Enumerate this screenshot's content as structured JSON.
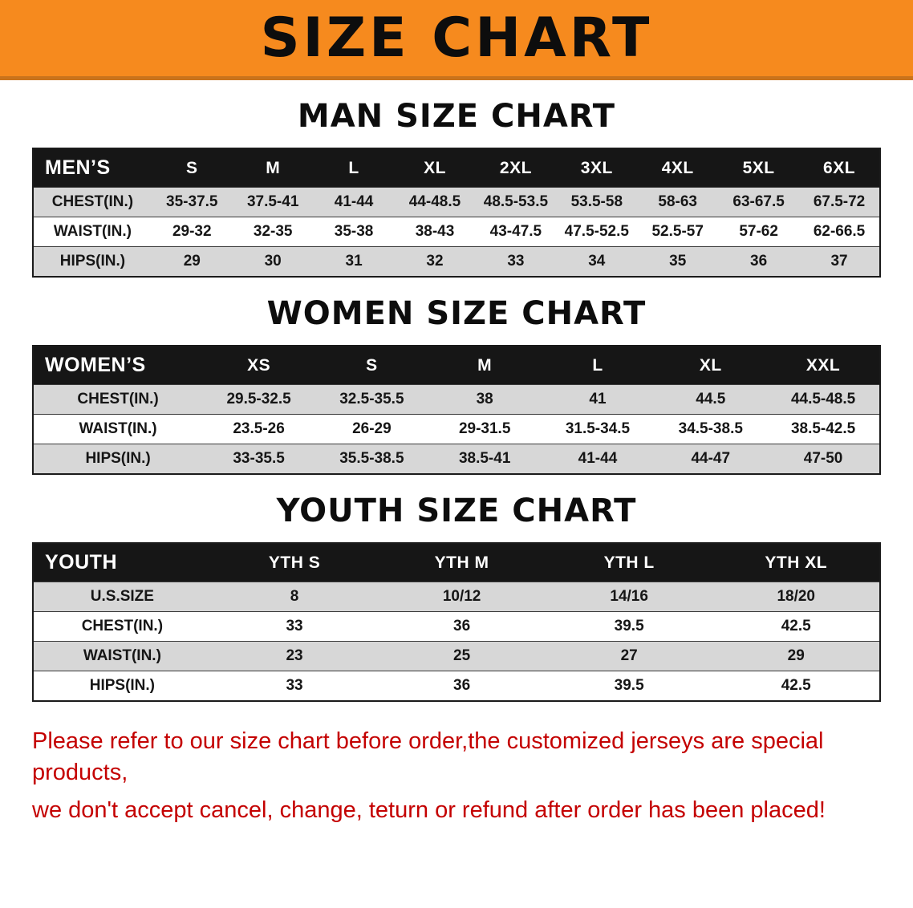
{
  "banner": {
    "title": "SIZE CHART"
  },
  "sections": [
    {
      "id": "men",
      "heading": "MAN SIZE CHART",
      "table": {
        "header": [
          "MEN’S",
          "S",
          "M",
          "L",
          "XL",
          "2XL",
          "3XL",
          "4XL",
          "5XL",
          "6XL"
        ],
        "rows": [
          {
            "label": "CHEST(IN.)",
            "values": [
              "35-37.5",
              "37.5-41",
              "41-44",
              "44-48.5",
              "48.5-53.5",
              "53.5-58",
              "58-63",
              "63-67.5",
              "67.5-72"
            ]
          },
          {
            "label": "WAIST(IN.)",
            "values": [
              "29-32",
              "32-35",
              "35-38",
              "38-43",
              "43-47.5",
              "47.5-52.5",
              "52.5-57",
              "57-62",
              "62-66.5"
            ]
          },
          {
            "label": "HIPS(IN.)",
            "values": [
              "29",
              "30",
              "31",
              "32",
              "33",
              "34",
              "35",
              "36",
              "37"
            ]
          }
        ]
      }
    },
    {
      "id": "women",
      "heading": "WOMEN SIZE CHART",
      "table": {
        "header": [
          "WOMEN’S",
          "XS",
          "S",
          "M",
          "L",
          "XL",
          "XXL"
        ],
        "rows": [
          {
            "label": "CHEST(IN.)",
            "values": [
              "29.5-32.5",
              "32.5-35.5",
              "38",
              "41",
              "44.5",
              "44.5-48.5"
            ]
          },
          {
            "label": "WAIST(IN.)",
            "values": [
              "23.5-26",
              "26-29",
              "29-31.5",
              "31.5-34.5",
              "34.5-38.5",
              "38.5-42.5"
            ]
          },
          {
            "label": "HIPS(IN.)",
            "values": [
              "33-35.5",
              "35.5-38.5",
              "38.5-41",
              "41-44",
              "44-47",
              "47-50"
            ]
          }
        ]
      }
    },
    {
      "id": "youth",
      "heading": "YOUTH SIZE CHART",
      "table": {
        "header": [
          "YOUTH",
          "YTH S",
          "YTH M",
          "YTH L",
          "YTH XL"
        ],
        "rows": [
          {
            "label": "U.S.SIZE",
            "values": [
              "8",
              "10/12",
              "14/16",
              "18/20"
            ]
          },
          {
            "label": "CHEST(IN.)",
            "values": [
              "33",
              "36",
              "39.5",
              "42.5"
            ]
          },
          {
            "label": "WAIST(IN.)",
            "values": [
              "23",
              "25",
              "27",
              "29"
            ]
          },
          {
            "label": "HIPS(IN.)",
            "values": [
              "33",
              "36",
              "39.5",
              "42.5"
            ]
          }
        ]
      }
    }
  ],
  "disclaimer": {
    "lines": [
      "Please refer to our size chart before order,the customized jerseys are special products,",
      "we don't accept cancel, change, teturn or refund after order has been placed!"
    ]
  },
  "colors": {
    "banner_bg": "#f68a1e",
    "banner_edge": "#c9731c",
    "header_bg": "#161616",
    "row_stripe": "#d7d7d7",
    "disclaimer_text": "#c40000"
  }
}
